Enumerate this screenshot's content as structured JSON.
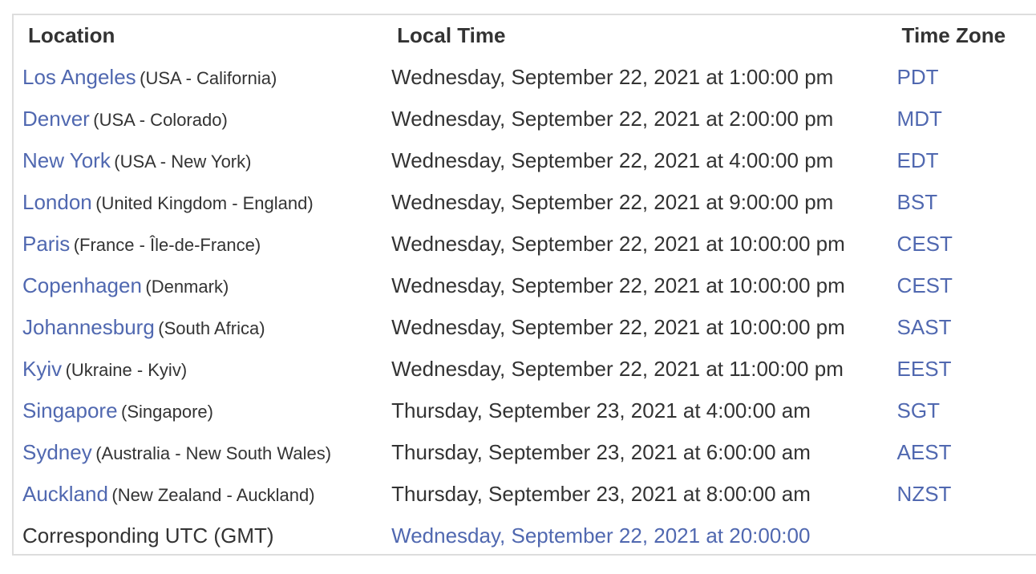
{
  "headers": {
    "location": "Location",
    "local_time": "Local Time",
    "time_zone": "Time Zone"
  },
  "rows": [
    {
      "city": "Los Angeles",
      "region": "(USA - California)",
      "time": "Wednesday, September 22, 2021 at 1:00:00 pm",
      "tz": "PDT"
    },
    {
      "city": "Denver",
      "region": "(USA - Colorado)",
      "time": "Wednesday, September 22, 2021 at 2:00:00 pm",
      "tz": "MDT"
    },
    {
      "city": "New York",
      "region": "(USA - New York)",
      "time": "Wednesday, September 22, 2021 at 4:00:00 pm",
      "tz": "EDT"
    },
    {
      "city": "London",
      "region": "(United Kingdom - England)",
      "time": "Wednesday, September 22, 2021 at 9:00:00 pm",
      "tz": "BST"
    },
    {
      "city": "Paris",
      "region": "(France - Île-de-France)",
      "time": "Wednesday, September 22, 2021 at 10:00:00 pm",
      "tz": "CEST"
    },
    {
      "city": "Copenhagen",
      "region": "(Denmark)",
      "time": "Wednesday, September 22, 2021 at 10:00:00 pm",
      "tz": "CEST"
    },
    {
      "city": "Johannesburg",
      "region": "(South Africa)",
      "time": "Wednesday, September 22, 2021 at 10:00:00 pm",
      "tz": "SAST"
    },
    {
      "city": "Kyiv",
      "region": "(Ukraine - Kyiv)",
      "time": "Wednesday, September 22, 2021 at 11:00:00 pm",
      "tz": "EEST"
    },
    {
      "city": "Singapore",
      "region": "(Singapore)",
      "time": "Thursday, September 23, 2021 at 4:00:00 am",
      "tz": "SGT"
    },
    {
      "city": "Sydney",
      "region": "(Australia - New South Wales)",
      "time": "Thursday, September 23, 2021 at 6:00:00 am",
      "tz": "AEST"
    },
    {
      "city": "Auckland",
      "region": "(New Zealand - Auckland)",
      "time": "Thursday, September 23, 2021 at 8:00:00 am",
      "tz": "NZST"
    }
  ],
  "utc": {
    "label": "Corresponding UTC (GMT)",
    "time": "Wednesday, September 22, 2021 at 20:00:00"
  },
  "colors": {
    "link": "#5068b0",
    "text": "#333333",
    "border": "#dddddd"
  }
}
